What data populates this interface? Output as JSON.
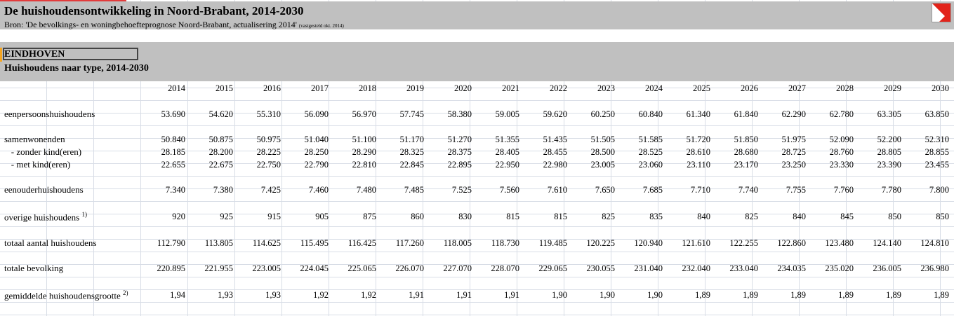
{
  "title": "De huishoudensontwikkeling in Noord-Brabant, 2014-2030",
  "source": "Bron: 'De bevolkings- en woningbehoefteprognose Noord-Brabant, actualisering 2014'",
  "source_note": "(vastgesteld okt. 2014)",
  "region": "EINDHOVEN",
  "subtitle": "Huishoudens naar type, 2014-2030",
  "logo_icon": "red-white-corner-logo-icon",
  "years": [
    "2014",
    "2015",
    "2016",
    "2017",
    "2018",
    "2019",
    "2020",
    "2021",
    "2022",
    "2023",
    "2024",
    "2025",
    "2026",
    "2027",
    "2028",
    "2029",
    "2030"
  ],
  "rows": [
    {
      "label": "eenpersoonshuishoudens",
      "sup": "",
      "values": [
        "53.690",
        "54.620",
        "55.310",
        "56.090",
        "56.970",
        "57.745",
        "58.380",
        "59.005",
        "59.620",
        "60.250",
        "60.840",
        "61.340",
        "61.840",
        "62.290",
        "62.780",
        "63.305",
        "63.850"
      ]
    },
    {
      "label": "samenwonenden",
      "sup": "",
      "values": [
        "50.840",
        "50.875",
        "50.975",
        "51.040",
        "51.100",
        "51.170",
        "51.270",
        "51.355",
        "51.435",
        "51.505",
        "51.585",
        "51.720",
        "51.850",
        "51.975",
        "52.090",
        "52.200",
        "52.310"
      ]
    },
    {
      "label": "   - zonder kind(eren)",
      "sup": "",
      "values": [
        "28.185",
        "28.200",
        "28.225",
        "28.250",
        "28.290",
        "28.325",
        "28.375",
        "28.405",
        "28.455",
        "28.500",
        "28.525",
        "28.610",
        "28.680",
        "28.725",
        "28.760",
        "28.805",
        "28.855"
      ]
    },
    {
      "label": "   - met kind(eren)",
      "sup": "",
      "values": [
        "22.655",
        "22.675",
        "22.750",
        "22.790",
        "22.810",
        "22.845",
        "22.895",
        "22.950",
        "22.980",
        "23.005",
        "23.060",
        "23.110",
        "23.170",
        "23.250",
        "23.330",
        "23.390",
        "23.455"
      ]
    },
    {
      "label": "eenouderhuishoudens",
      "sup": "",
      "values": [
        "7.340",
        "7.380",
        "7.425",
        "7.460",
        "7.480",
        "7.485",
        "7.525",
        "7.560",
        "7.610",
        "7.650",
        "7.685",
        "7.710",
        "7.740",
        "7.755",
        "7.760",
        "7.780",
        "7.800"
      ]
    },
    {
      "label": "overige huishoudens",
      "sup": "1)",
      "values": [
        "920",
        "925",
        "915",
        "905",
        "875",
        "860",
        "830",
        "815",
        "815",
        "825",
        "835",
        "840",
        "825",
        "840",
        "845",
        "850",
        "850"
      ]
    },
    {
      "label": "totaal aantal huishoudens",
      "sup": "",
      "values": [
        "112.790",
        "113.805",
        "114.625",
        "115.495",
        "116.425",
        "117.260",
        "118.005",
        "118.730",
        "119.485",
        "120.225",
        "120.940",
        "121.610",
        "122.255",
        "122.860",
        "123.480",
        "124.140",
        "124.810"
      ]
    },
    {
      "label": "totale bevolking",
      "sup": "",
      "values": [
        "220.895",
        "221.955",
        "223.005",
        "224.045",
        "225.065",
        "226.070",
        "227.070",
        "228.070",
        "229.065",
        "230.055",
        "231.040",
        "232.040",
        "233.040",
        "234.035",
        "235.020",
        "236.005",
        "236.980"
      ]
    },
    {
      "label": "gemiddelde huishoudensgrootte",
      "sup": "2)",
      "values": [
        "1,94",
        "1,93",
        "1,93",
        "1,92",
        "1,92",
        "1,91",
        "1,91",
        "1,91",
        "1,90",
        "1,90",
        "1,90",
        "1,89",
        "1,89",
        "1,89",
        "1,89",
        "1,89",
        "1,89"
      ]
    }
  ]
}
